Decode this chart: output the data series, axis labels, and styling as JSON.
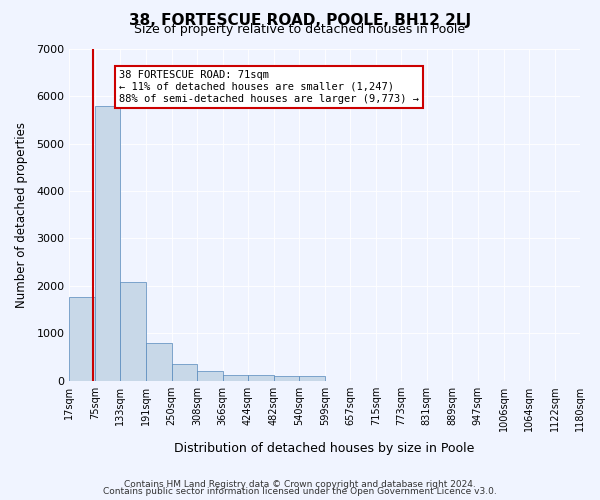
{
  "title": "38, FORTESCUE ROAD, POOLE, BH12 2LJ",
  "subtitle": "Size of property relative to detached houses in Poole",
  "xlabel": "Distribution of detached houses by size in Poole",
  "ylabel": "Number of detached properties",
  "bar_color": "#c8d8e8",
  "bar_edge_color": "#5588bb",
  "bin_labels": [
    "17sqm",
    "75sqm",
    "133sqm",
    "191sqm",
    "250sqm",
    "308sqm",
    "366sqm",
    "424sqm",
    "482sqm",
    "540sqm",
    "599sqm",
    "657sqm",
    "715sqm",
    "773sqm",
    "831sqm",
    "889sqm",
    "947sqm",
    "1006sqm",
    "1064sqm",
    "1122sqm",
    "1180sqm"
  ],
  "bin_edges": [
    17,
    75,
    133,
    191,
    250,
    308,
    366,
    424,
    482,
    540,
    599,
    657,
    715,
    773,
    831,
    889,
    947,
    1006,
    1064,
    1122,
    1180
  ],
  "bar_heights": [
    1760,
    5800,
    2080,
    800,
    350,
    200,
    120,
    110,
    100,
    90,
    0,
    0,
    0,
    0,
    0,
    0,
    0,
    0,
    0,
    0
  ],
  "ylim": [
    0,
    7000
  ],
  "yticks": [
    0,
    1000,
    2000,
    3000,
    4000,
    5000,
    6000,
    7000
  ],
  "property_size": 71,
  "property_line_color": "#cc0000",
  "annotation_text": "38 FORTESCUE ROAD: 71sqm\n← 11% of detached houses are smaller (1,247)\n88% of semi-detached houses are larger (9,773) →",
  "annotation_box_color": "#ffffff",
  "annotation_box_edge": "#cc0000",
  "footer_line1": "Contains HM Land Registry data © Crown copyright and database right 2024.",
  "footer_line2": "Contains public sector information licensed under the Open Government Licence v3.0.",
  "background_color": "#f0f4ff",
  "plot_bg_color": "#f0f4ff"
}
